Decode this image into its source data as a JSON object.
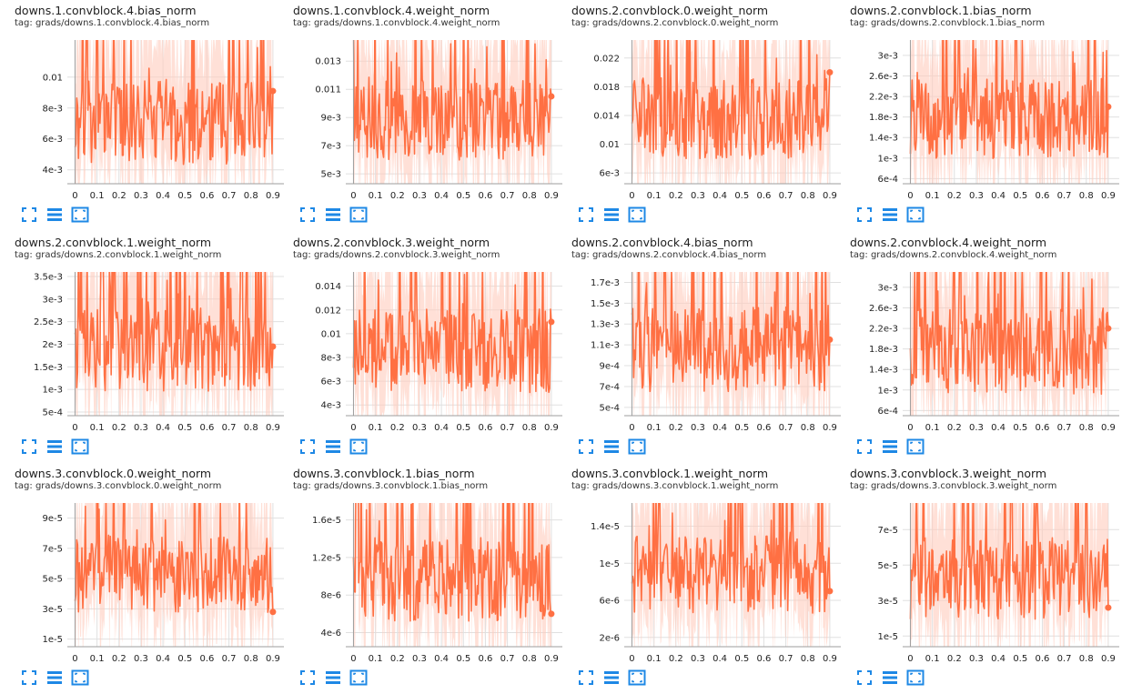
{
  "colors": {
    "series": "#ff7043",
    "band": "#ffccbc",
    "grid": "#e0e0e0",
    "axis": "#9e9e9e",
    "icon": "#1e88e5"
  },
  "toolbar_icons": [
    "fullscreen-icon",
    "lines-icon",
    "fit-domain-icon"
  ],
  "chart_data": [
    {
      "type": "line",
      "title": "downs.1.convblock.4.bias_norm",
      "tag": "tag: grads/downs.1.convblock.4.bias_norm",
      "ylim": [
        0.0031,
        0.0124
      ],
      "xlim": [
        -0.035,
        0.95
      ],
      "yticks": [
        0.004,
        0.006,
        0.008,
        0.01
      ],
      "ytick_labels": [
        "4e-3",
        "6e-3",
        "8e-3",
        "0.01"
      ],
      "xticks": [
        0,
        0.1,
        0.2,
        0.3,
        0.4,
        0.5,
        0.6,
        0.7,
        0.8,
        0.9
      ],
      "xtick_labels": [
        "0",
        "0.1",
        "0.2",
        "0.3",
        "0.4",
        "0.5",
        "0.6",
        "0.7",
        "0.8",
        "0.9"
      ],
      "series": [
        {
          "x": [
            0,
            0.9
          ],
          "y_range": [
            0.003,
            0.012
          ],
          "last_value": 0.0091
        }
      ]
    },
    {
      "type": "line",
      "title": "downs.1.convblock.4.weight_norm",
      "tag": "tag: grads/downs.1.convblock.4.weight_norm",
      "ylim": [
        0.0043,
        0.0145
      ],
      "xlim": [
        -0.035,
        0.95
      ],
      "yticks": [
        0.005,
        0.007,
        0.009,
        0.011,
        0.013
      ],
      "ytick_labels": [
        "5e-3",
        "7e-3",
        "9e-3",
        "0.011",
        "0.013"
      ],
      "xticks": [
        0,
        0.1,
        0.2,
        0.3,
        0.4,
        0.5,
        0.6,
        0.7,
        0.8,
        0.9
      ],
      "xtick_labels": [
        "0",
        "0.1",
        "0.2",
        "0.3",
        "0.4",
        "0.5",
        "0.6",
        "0.7",
        "0.8",
        "0.9"
      ],
      "series": [
        {
          "x": [
            0,
            0.9
          ],
          "y_range": [
            0.0045,
            0.014
          ],
          "last_value": 0.0105
        }
      ]
    },
    {
      "type": "line",
      "title": "downs.2.convblock.0.weight_norm",
      "tag": "tag: grads/downs.2.convblock.0.weight_norm",
      "ylim": [
        0.0045,
        0.0245
      ],
      "xlim": [
        -0.035,
        0.95
      ],
      "yticks": [
        0.006,
        0.01,
        0.014,
        0.018,
        0.022
      ],
      "ytick_labels": [
        "6e-3",
        "0.01",
        "0.014",
        "0.018",
        "0.022"
      ],
      "xticks": [
        0,
        0.1,
        0.2,
        0.3,
        0.4,
        0.5,
        0.6,
        0.7,
        0.8,
        0.9
      ],
      "xtick_labels": [
        "0",
        "0.1",
        "0.2",
        "0.3",
        "0.4",
        "0.5",
        "0.6",
        "0.7",
        "0.8",
        "0.9"
      ],
      "series": [
        {
          "x": [
            0,
            0.9
          ],
          "y_range": [
            0.005,
            0.024
          ],
          "last_value": 0.02
        }
      ]
    },
    {
      "type": "line",
      "title": "downs.2.convblock.1.bias_norm",
      "tag": "tag: grads/downs.2.convblock.1.bias_norm",
      "ylim": [
        0.0005,
        0.0033
      ],
      "xlim": [
        -0.035,
        0.95
      ],
      "yticks": [
        0.0006,
        0.001,
        0.0014,
        0.0018,
        0.0022,
        0.0026,
        0.003
      ],
      "ytick_labels": [
        "6e-4",
        "1e-3",
        "1.4e-3",
        "1.8e-3",
        "2.2e-3",
        "2.6e-3",
        "3e-3"
      ],
      "xticks": [
        0,
        0.1,
        0.2,
        0.3,
        0.4,
        0.5,
        0.6,
        0.7,
        0.8,
        0.9
      ],
      "xtick_labels": [
        "0",
        "0.1",
        "0.2",
        "0.3",
        "0.4",
        "0.5",
        "0.6",
        "0.7",
        "0.8",
        "0.9"
      ],
      "series": [
        {
          "x": [
            0,
            0.9
          ],
          "y_range": [
            0.0006,
            0.0032
          ],
          "last_value": 0.002
        }
      ]
    },
    {
      "type": "line",
      "title": "downs.2.convblock.1.weight_norm",
      "tag": "tag: grads/downs.2.convblock.1.weight_norm",
      "ylim": [
        0.00042,
        0.0036
      ],
      "xlim": [
        -0.035,
        0.95
      ],
      "yticks": [
        0.0005,
        0.001,
        0.0015,
        0.002,
        0.0025,
        0.003,
        0.0035
      ],
      "ytick_labels": [
        "5e-4",
        "1e-3",
        "1.5e-3",
        "2e-3",
        "2.5e-3",
        "3e-3",
        "3.5e-3"
      ],
      "xticks": [
        0,
        0.1,
        0.2,
        0.3,
        0.4,
        0.5,
        0.6,
        0.7,
        0.8,
        0.9
      ],
      "xtick_labels": [
        "0",
        "0.1",
        "0.2",
        "0.3",
        "0.4",
        "0.5",
        "0.6",
        "0.7",
        "0.8",
        "0.9"
      ],
      "series": [
        {
          "x": [
            0,
            0.9
          ],
          "y_range": [
            0.0005,
            0.0036
          ],
          "last_value": 0.00195
        }
      ]
    },
    {
      "type": "line",
      "title": "downs.2.convblock.3.weight_norm",
      "tag": "tag: grads/downs.2.convblock.3.weight_norm",
      "ylim": [
        0.0031,
        0.0152
      ],
      "xlim": [
        -0.035,
        0.95
      ],
      "yticks": [
        0.004,
        0.006,
        0.008,
        0.01,
        0.012,
        0.014
      ],
      "ytick_labels": [
        "4e-3",
        "6e-3",
        "8e-3",
        "0.01",
        "0.012",
        "0.014"
      ],
      "xticks": [
        0,
        0.1,
        0.2,
        0.3,
        0.4,
        0.5,
        0.6,
        0.7,
        0.8,
        0.9
      ],
      "xtick_labels": [
        "0",
        "0.1",
        "0.2",
        "0.3",
        "0.4",
        "0.5",
        "0.6",
        "0.7",
        "0.8",
        "0.9"
      ],
      "series": [
        {
          "x": [
            0,
            0.9
          ],
          "y_range": [
            0.0033,
            0.015
          ],
          "last_value": 0.011
        }
      ]
    },
    {
      "type": "line",
      "title": "downs.2.convblock.4.bias_norm",
      "tag": "tag: grads/downs.2.convblock.4.bias_norm",
      "ylim": [
        0.00042,
        0.0018
      ],
      "xlim": [
        -0.035,
        0.95
      ],
      "yticks": [
        0.0005,
        0.0007,
        0.0009,
        0.0011,
        0.0013,
        0.0015,
        0.0017
      ],
      "ytick_labels": [
        "5e-4",
        "7e-4",
        "9e-4",
        "1.1e-3",
        "1.3e-3",
        "1.5e-3",
        "1.7e-3"
      ],
      "xticks": [
        0,
        0.1,
        0.2,
        0.3,
        0.4,
        0.5,
        0.6,
        0.7,
        0.8,
        0.9
      ],
      "xtick_labels": [
        "0",
        "0.1",
        "0.2",
        "0.3",
        "0.4",
        "0.5",
        "0.6",
        "0.7",
        "0.8",
        "0.9"
      ],
      "series": [
        {
          "x": [
            0,
            0.9
          ],
          "y_range": [
            0.00045,
            0.0018
          ],
          "last_value": 0.00115
        }
      ]
    },
    {
      "type": "line",
      "title": "downs.2.convblock.4.weight_norm",
      "tag": "tag: grads/downs.2.convblock.4.weight_norm",
      "ylim": [
        0.0005,
        0.0033
      ],
      "xlim": [
        -0.035,
        0.95
      ],
      "yticks": [
        0.0006,
        0.001,
        0.0014,
        0.0018,
        0.0022,
        0.0026,
        0.003
      ],
      "ytick_labels": [
        "6e-4",
        "1e-3",
        "1.4e-3",
        "1.8e-3",
        "2.2e-3",
        "2.6e-3",
        "3e-3"
      ],
      "xticks": [
        0,
        0.1,
        0.2,
        0.3,
        0.4,
        0.5,
        0.6,
        0.7,
        0.8,
        0.9
      ],
      "xtick_labels": [
        "0",
        "0.1",
        "0.2",
        "0.3",
        "0.4",
        "0.5",
        "0.6",
        "0.7",
        "0.8",
        "0.9"
      ],
      "series": [
        {
          "x": [
            0,
            0.9
          ],
          "y_range": [
            0.0005,
            0.0033
          ],
          "last_value": 0.0022
        }
      ]
    },
    {
      "type": "line",
      "title": "downs.3.convblock.0.weight_norm",
      "tag": "tag: grads/downs.3.convblock.0.weight_norm",
      "ylim": [
        5e-06,
        0.0001
      ],
      "xlim": [
        -0.035,
        0.95
      ],
      "yticks": [
        1e-05,
        3e-05,
        5e-05,
        7e-05,
        9e-05
      ],
      "ytick_labels": [
        "1e-5",
        "3e-5",
        "5e-5",
        "7e-5",
        "9e-5"
      ],
      "xticks": [
        0,
        0.1,
        0.2,
        0.3,
        0.4,
        0.5,
        0.6,
        0.7,
        0.8,
        0.9
      ],
      "xtick_labels": [
        "0",
        "0.1",
        "0.2",
        "0.3",
        "0.4",
        "0.5",
        "0.6",
        "0.7",
        "0.8",
        "0.9"
      ],
      "series": [
        {
          "x": [
            0,
            0.9
          ],
          "y_range": [
            1.5e-05,
            0.0001
          ],
          "last_value": 2.8e-05
        }
      ]
    },
    {
      "type": "line",
      "title": "downs.3.convblock.1.bias_norm",
      "tag": "tag: grads/downs.3.convblock.1.bias_norm",
      "ylim": [
        2.5e-06,
        1.78e-05
      ],
      "xlim": [
        -0.035,
        0.95
      ],
      "yticks": [
        4e-06,
        8e-06,
        1.2e-05,
        1.6e-05
      ],
      "ytick_labels": [
        "4e-6",
        "8e-6",
        "1.2e-5",
        "1.6e-5"
      ],
      "xticks": [
        0,
        0.1,
        0.2,
        0.3,
        0.4,
        0.5,
        0.6,
        0.7,
        0.8,
        0.9
      ],
      "xtick_labels": [
        "0",
        "0.1",
        "0.2",
        "0.3",
        "0.4",
        "0.5",
        "0.6",
        "0.7",
        "0.8",
        "0.9"
      ],
      "series": [
        {
          "x": [
            0,
            0.9
          ],
          "y_range": [
            3e-06,
            1.78e-05
          ],
          "last_value": 6e-06
        }
      ]
    },
    {
      "type": "line",
      "title": "downs.3.convblock.1.weight_norm",
      "tag": "tag: grads/downs.3.convblock.1.weight_norm",
      "ylim": [
        1e-06,
        1.65e-05
      ],
      "xlim": [
        -0.035,
        0.95
      ],
      "yticks": [
        2e-06,
        6e-06,
        1e-05,
        1.4e-05
      ],
      "ytick_labels": [
        "2e-6",
        "6e-6",
        "1e-5",
        "1.4e-5"
      ],
      "xticks": [
        0,
        0.1,
        0.2,
        0.3,
        0.4,
        0.5,
        0.6,
        0.7,
        0.8,
        0.9
      ],
      "xtick_labels": [
        "0",
        "0.1",
        "0.2",
        "0.3",
        "0.4",
        "0.5",
        "0.6",
        "0.7",
        "0.8",
        "0.9"
      ],
      "series": [
        {
          "x": [
            0,
            0.9
          ],
          "y_range": [
            2.5e-06,
            1.65e-05
          ],
          "last_value": 7e-06
        }
      ]
    },
    {
      "type": "line",
      "title": "downs.3.convblock.3.weight_norm",
      "tag": "tag: grads/downs.3.convblock.3.weight_norm",
      "ylim": [
        4e-06,
        8.5e-05
      ],
      "xlim": [
        -0.035,
        0.95
      ],
      "yticks": [
        1e-05,
        3e-05,
        5e-05,
        7e-05
      ],
      "ytick_labels": [
        "1e-5",
        "3e-5",
        "5e-5",
        "7e-5"
      ],
      "xticks": [
        0,
        0.1,
        0.2,
        0.3,
        0.4,
        0.5,
        0.6,
        0.7,
        0.8,
        0.9
      ],
      "xtick_labels": [
        "0",
        "0.1",
        "0.2",
        "0.3",
        "0.4",
        "0.5",
        "0.6",
        "0.7",
        "0.8",
        "0.9"
      ],
      "series": [
        {
          "x": [
            0,
            0.9
          ],
          "y_range": [
            8e-06,
            8.5e-05
          ],
          "last_value": 2.6e-05
        }
      ]
    }
  ]
}
